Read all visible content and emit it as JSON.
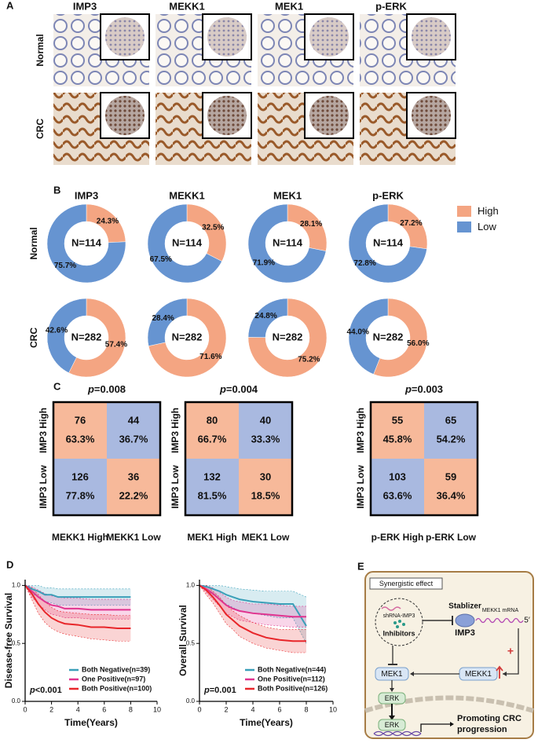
{
  "panel_labels": [
    "A",
    "B",
    "C",
    "D",
    "E"
  ],
  "panel_a": {
    "columns": [
      "IMP3",
      "MEKK1",
      "MEK1",
      "p-ERK"
    ],
    "rows": [
      "Normal",
      "CRC"
    ]
  },
  "panel_b": {
    "columns": [
      "IMP3",
      "MEKK1",
      "MEK1",
      "p-ERK"
    ],
    "rows": [
      "Normal",
      "CRC"
    ],
    "legend": [
      {
        "name": "High",
        "color": "#f4a582"
      },
      {
        "name": "Low",
        "color": "#6694d1"
      }
    ]
  },
  "chart_data": [
    {
      "type": "pie",
      "center_label": "N=114",
      "values": [
        24.3,
        75.7
      ],
      "value_labels": [
        "24.3%",
        "75.7%"
      ],
      "colors": [
        "#f4a582",
        "#6694d1"
      ]
    },
    {
      "type": "pie",
      "center_label": "N=114",
      "values": [
        32.5,
        67.5
      ],
      "value_labels": [
        "32.5%",
        "67.5%"
      ],
      "colors": [
        "#f4a582",
        "#6694d1"
      ]
    },
    {
      "type": "pie",
      "center_label": "N=114",
      "values": [
        28.1,
        71.9
      ],
      "value_labels": [
        "28.1%",
        "71.9%"
      ],
      "colors": [
        "#f4a582",
        "#6694d1"
      ]
    },
    {
      "type": "pie",
      "center_label": "N=114",
      "values": [
        27.2,
        72.8
      ],
      "value_labels": [
        "27.2%",
        "72.8%"
      ],
      "colors": [
        "#f4a582",
        "#6694d1"
      ]
    },
    {
      "type": "pie",
      "center_label": "N=282",
      "values": [
        57.4,
        42.6
      ],
      "value_labels": [
        "57.4%",
        "42.6%"
      ],
      "colors": [
        "#f4a582",
        "#6694d1"
      ]
    },
    {
      "type": "pie",
      "center_label": "N=282",
      "values": [
        71.6,
        28.4
      ],
      "value_labels": [
        "71.6%",
        "28.4%"
      ],
      "colors": [
        "#f4a582",
        "#6694d1"
      ]
    },
    {
      "type": "pie",
      "center_label": "N=282",
      "values": [
        75.2,
        24.8
      ],
      "value_labels": [
        "75.2%",
        "24.8%"
      ],
      "colors": [
        "#f4a582",
        "#6694d1"
      ]
    },
    {
      "type": "pie",
      "center_label": "N=282",
      "values": [
        56,
        44
      ],
      "value_labels": [
        "56.0%",
        "44.0%"
      ],
      "colors": [
        "#f4a582",
        "#6694d1"
      ]
    },
    {
      "type": "line",
      "y_label": "Disease-free Survival",
      "x_label": "Time(Years)",
      "annotation": {
        "p_symbol": "p",
        "p_text": "<0.001"
      },
      "legend": "lower right",
      "xlim": [
        0,
        10
      ],
      "xticks": [
        0,
        2,
        4,
        6,
        8,
        10
      ],
      "ylim": [
        0,
        1.05
      ],
      "yticks": [
        {
          "value": 0,
          "label": "0.0"
        },
        {
          "value": 0.5,
          "label": "0.5"
        },
        {
          "value": 1,
          "label": "1.0"
        }
      ],
      "x": [
        0,
        0.5,
        1,
        1.5,
        2,
        2.5,
        3,
        4,
        5,
        6,
        7,
        8
      ],
      "series": [
        {
          "name": "Both Negative(n=39)",
          "color": "#3a9fb8",
          "values": [
            1,
            0.97,
            0.95,
            0.92,
            0.92,
            0.9,
            0.9,
            0.9,
            0.9,
            0.9,
            0.9,
            0.9
          ],
          "ci_lower": [
            1,
            0.93,
            0.9,
            0.86,
            0.85,
            0.83,
            0.83,
            0.83,
            0.83,
            0.83,
            0.83,
            0.83
          ],
          "ci_upper": [
            1,
            1,
            1,
            0.98,
            0.98,
            0.97,
            0.97,
            0.97,
            0.97,
            0.97,
            0.97,
            0.97
          ]
        },
        {
          "name": "One Positive(n=97)",
          "color": "#e0338f",
          "values": [
            1,
            0.95,
            0.9,
            0.86,
            0.83,
            0.82,
            0.8,
            0.8,
            0.79,
            0.79,
            0.79,
            0.79
          ],
          "ci_lower": [
            1,
            0.9,
            0.84,
            0.79,
            0.75,
            0.74,
            0.72,
            0.72,
            0.71,
            0.71,
            0.71,
            0.71
          ],
          "ci_upper": [
            1,
            0.99,
            0.96,
            0.93,
            0.91,
            0.9,
            0.89,
            0.89,
            0.88,
            0.88,
            0.88,
            0.88
          ]
        },
        {
          "name": "Both Positive(n=100)",
          "color": "#e8262a",
          "values": [
            1,
            0.93,
            0.84,
            0.77,
            0.72,
            0.69,
            0.67,
            0.66,
            0.64,
            0.64,
            0.63,
            0.63
          ],
          "ci_lower": [
            1,
            0.88,
            0.76,
            0.68,
            0.63,
            0.6,
            0.58,
            0.56,
            0.54,
            0.53,
            0.52,
            0.52
          ],
          "ci_upper": [
            1,
            0.98,
            0.92,
            0.86,
            0.81,
            0.78,
            0.77,
            0.76,
            0.75,
            0.75,
            0.74,
            0.74
          ]
        }
      ]
    },
    {
      "type": "line",
      "y_label": "Overall Survival",
      "x_label": "Time(Years)",
      "annotation": {
        "p_symbol": "p",
        "p_text": "=0.001"
      },
      "legend": "lower right",
      "xlim": [
        0,
        10
      ],
      "xticks": [
        0,
        2,
        4,
        6,
        8,
        10
      ],
      "ylim": [
        0,
        1.05
      ],
      "yticks": [
        {
          "value": 0,
          "label": "0.0"
        },
        {
          "value": 0.5,
          "label": "0.5"
        },
        {
          "value": 1,
          "label": "1.0"
        }
      ],
      "x": [
        0,
        0.5,
        1,
        1.5,
        2,
        2.5,
        3,
        4,
        5,
        6,
        7,
        8
      ],
      "series": [
        {
          "name": "Both Negative(n=44)",
          "color": "#3a9fb8",
          "values": [
            1,
            0.99,
            0.97,
            0.95,
            0.92,
            0.9,
            0.88,
            0.86,
            0.85,
            0.84,
            0.84,
            0.65
          ],
          "ci_lower": [
            1,
            0.96,
            0.92,
            0.88,
            0.84,
            0.81,
            0.78,
            0.76,
            0.74,
            0.72,
            0.72,
            0.5
          ],
          "ci_upper": [
            1,
            1,
            1,
            1,
            0.99,
            0.98,
            0.97,
            0.96,
            0.95,
            0.95,
            0.95,
            0.9
          ]
        },
        {
          "name": "One Positive(n=112)",
          "color": "#e0338f",
          "values": [
            1,
            0.97,
            0.93,
            0.88,
            0.83,
            0.8,
            0.78,
            0.76,
            0.75,
            0.74,
            0.73,
            0.73
          ],
          "ci_lower": [
            1,
            0.94,
            0.88,
            0.82,
            0.76,
            0.73,
            0.7,
            0.68,
            0.66,
            0.65,
            0.64,
            0.64
          ],
          "ci_upper": [
            1,
            1,
            0.98,
            0.94,
            0.9,
            0.87,
            0.86,
            0.84,
            0.84,
            0.83,
            0.82,
            0.82
          ]
        },
        {
          "name": "Both Positive(n=126)",
          "color": "#e8262a",
          "values": [
            1,
            0.96,
            0.9,
            0.83,
            0.75,
            0.7,
            0.65,
            0.59,
            0.55,
            0.53,
            0.52,
            0.52
          ],
          "ci_lower": [
            1,
            0.92,
            0.85,
            0.76,
            0.67,
            0.62,
            0.56,
            0.5,
            0.46,
            0.44,
            0.42,
            0.42
          ],
          "ci_upper": [
            1,
            1,
            0.95,
            0.9,
            0.83,
            0.78,
            0.74,
            0.68,
            0.64,
            0.62,
            0.62,
            0.62
          ]
        }
      ]
    }
  ],
  "panel_c": {
    "tables": [
      {
        "p_symbol": "p",
        "p_text": "=0.008",
        "rows": [
          "IMP3 High",
          "IMP3 Low"
        ],
        "columns": [
          "MEKK1 High",
          "MEKK1 Low"
        ],
        "cells": [
          [
            {
              "count": 76,
              "percent": "63.3%"
            },
            {
              "count": 44,
              "percent": "36.7%"
            }
          ],
          [
            {
              "count": 126,
              "percent": "77.8%"
            },
            {
              "count": 36,
              "percent": "22.2%"
            }
          ]
        ]
      },
      {
        "p_symbol": "p",
        "p_text": "=0.004",
        "rows": [
          "IMP3 High",
          "IMP3 Low"
        ],
        "columns": [
          "MEK1 High",
          "MEK1 Low"
        ],
        "cells": [
          [
            {
              "count": 80,
              "percent": "66.7%"
            },
            {
              "count": 40,
              "percent": "33.3%"
            }
          ],
          [
            {
              "count": 132,
              "percent": "81.5%"
            },
            {
              "count": 30,
              "percent": "18.5%"
            }
          ]
        ]
      },
      {
        "p_symbol": "p",
        "p_text": "=0.003",
        "rows": [
          "IMP3 High",
          "IMP3 Low"
        ],
        "columns": [
          "p-ERK High",
          "p-ERK Low"
        ],
        "cells": [
          [
            {
              "count": 55,
              "percent": "45.8%"
            },
            {
              "count": 65,
              "percent": "54.2%"
            }
          ],
          [
            {
              "count": 103,
              "percent": "63.6%"
            },
            {
              "count": 59,
              "percent": "36.4%"
            }
          ]
        ]
      }
    ]
  },
  "diagram": {
    "synergy": "Synergistic effect",
    "shrna": "shRNA-IMP3",
    "inhibitors": "Inhibitors",
    "stabilizer": "Stablizer",
    "mrna": "MEKK1 mRNA",
    "five_prime": "5′",
    "imp3": "IMP3",
    "plus": "+",
    "mek1": "MEK1",
    "mekk1": "MEKK1",
    "erk_cyto": "ERK",
    "erk_nucleus": "ERK",
    "outcome": [
      "Promoting CRC",
      "progression"
    ]
  }
}
